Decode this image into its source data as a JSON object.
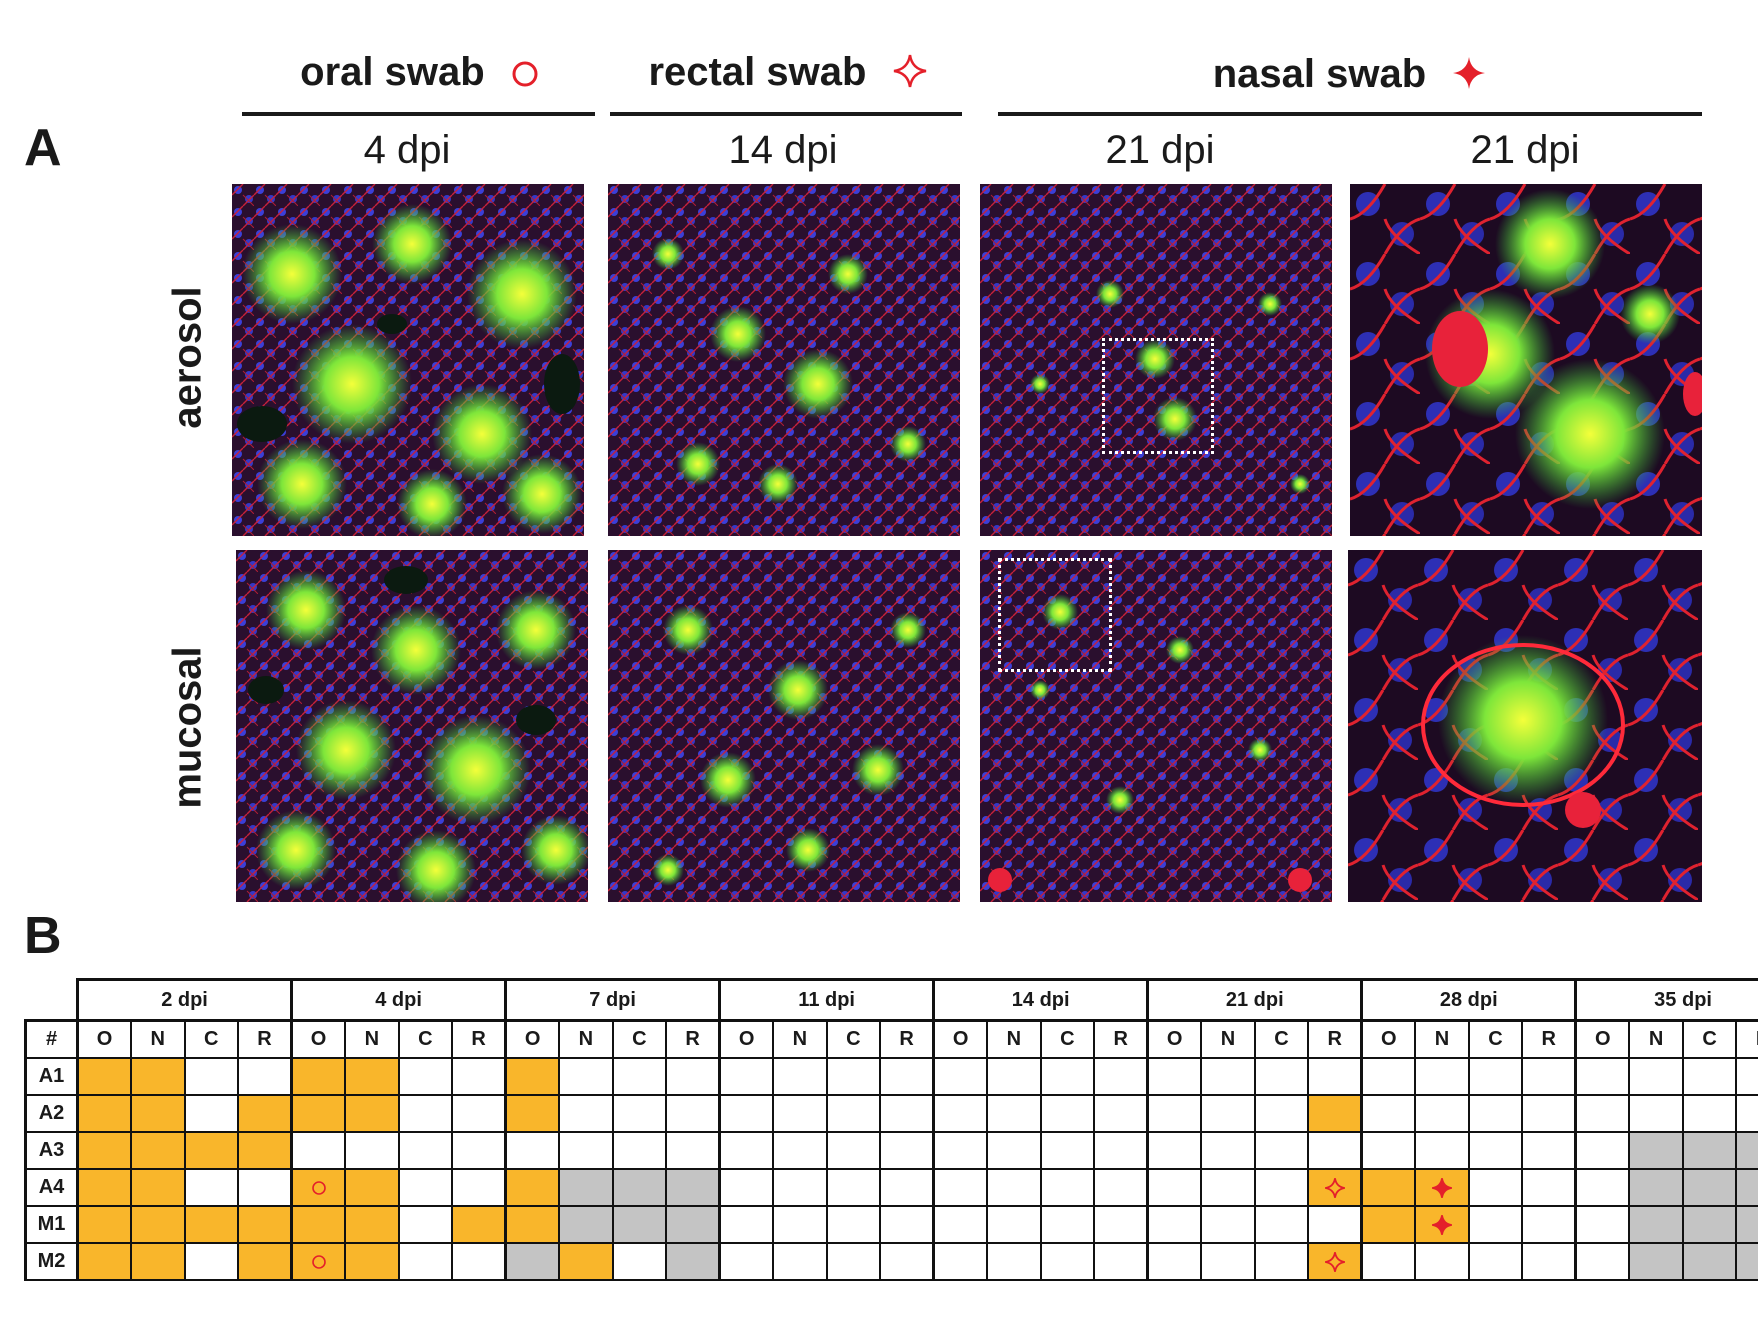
{
  "panel_a": {
    "letter": "A",
    "swab_groups": [
      {
        "label": "oral swab",
        "symbol": "circle-outline-icon"
      },
      {
        "label": "rectal swab",
        "symbol": "four-point-star-outline-icon"
      },
      {
        "label": "nasal swab",
        "symbol": "four-point-star-filled-icon"
      }
    ],
    "columns": [
      "4 dpi",
      "14 dpi",
      "21 dpi",
      "21 dpi"
    ],
    "rows": [
      "aerosol",
      "mucosal"
    ]
  },
  "panel_b": {
    "letter": "B",
    "dpi_headers": [
      "2 dpi",
      "4 dpi",
      "7 dpi",
      "11 dpi",
      "14 dpi",
      "21 dpi",
      "28 dpi",
      "35 dpi"
    ],
    "id_header": "#",
    "sub_headers": [
      "O",
      "N",
      "C",
      "R"
    ],
    "animals": [
      "A1",
      "A2",
      "A3",
      "A4",
      "M1",
      "M2"
    ]
  },
  "colors": {
    "positive": "#f9b62b",
    "not_available": "#c4c4c4",
    "symbol_red": "#e4202a"
  }
}
